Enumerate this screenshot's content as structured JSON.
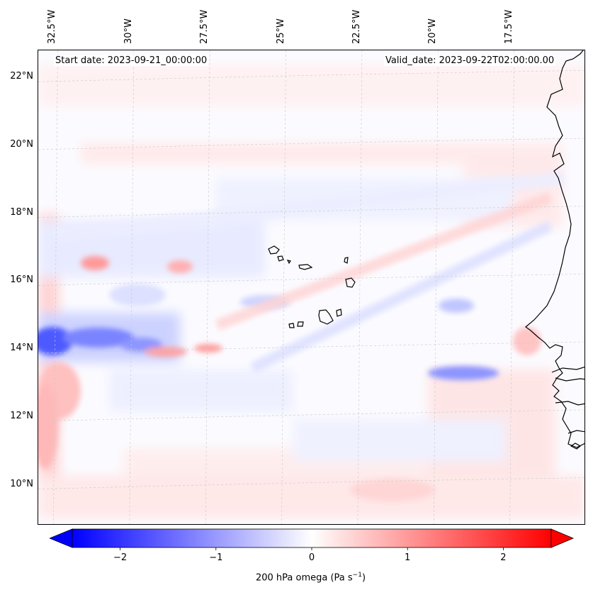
{
  "header": {
    "start_date": "Start date: 2023-09-21_00:00:00",
    "valid_date": "Valid_date: 2023-09-22T02:00:00.00"
  },
  "map": {
    "lon_range": [
      -33.0,
      -15.0
    ],
    "lat_range": [
      8.8,
      22.8
    ],
    "lon_ticks": [
      "32.5°W",
      "30°W",
      "27.5°W",
      "25°W",
      "22.5°W",
      "20°W",
      "17.5°W"
    ],
    "lon_tick_values": [
      -32.5,
      -30.0,
      -27.5,
      -25.0,
      -22.5,
      -20.0,
      -17.5
    ],
    "lat_ticks": [
      "22°N",
      "20°N",
      "18°N",
      "16°N",
      "14°N",
      "12°N",
      "10°N"
    ],
    "lat_tick_values": [
      22,
      20,
      18,
      16,
      14,
      12,
      10
    ],
    "gridlines": true,
    "features": [
      "coastline-west-africa",
      "cape-verde-islands"
    ]
  },
  "colorbar": {
    "ticks": [
      "−2",
      "−1",
      "0",
      "1",
      "2"
    ],
    "tick_values": [
      -2,
      -1,
      0,
      1,
      2
    ],
    "range": [
      -2.5,
      2.5
    ],
    "colormap": "bwr",
    "low_color": "#0000ff",
    "mid_color": "#ffffff",
    "high_color": "#ff0000",
    "extend": "both",
    "label_prefix": "200 hPa omega (Pa s",
    "label_exp": "−1",
    "label_suffix": ")"
  }
}
